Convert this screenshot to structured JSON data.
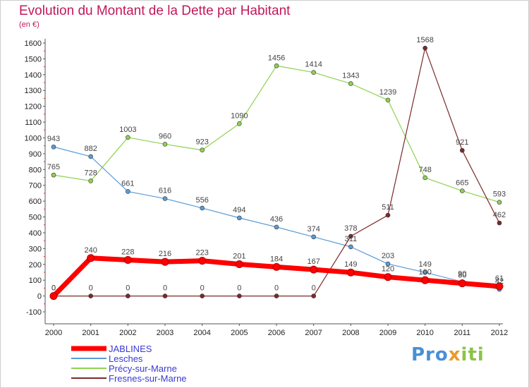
{
  "header": {
    "title": "Evolution du Montant de la Dette par Habitant",
    "subtitle": "(en €)"
  },
  "logo": {
    "text": "Proxiti",
    "parts": [
      "Pro",
      "x",
      "iti"
    ]
  },
  "chart_data": {
    "type": "line",
    "title": "Evolution du Montant de la Dette par Habitant",
    "subtitle": "(en €)",
    "xlabel": "",
    "ylabel": "",
    "x": [
      "2000",
      "2001",
      "2002",
      "2003",
      "2004",
      "2005",
      "2006",
      "2007",
      "2008",
      "2009",
      "2010",
      "2011",
      "2012"
    ],
    "ylim": [
      -100,
      1600
    ],
    "yticks": [
      -100,
      0,
      100,
      200,
      300,
      400,
      500,
      600,
      700,
      800,
      900,
      1000,
      1100,
      1200,
      1300,
      1400,
      1500,
      1600
    ],
    "grid": false,
    "legend_position": "bottom-left",
    "series": [
      {
        "name": "JABLINES",
        "color": "#ff0000",
        "values": [
          0,
          240,
          228,
          216,
          223,
          201,
          184,
          167,
          149,
          120,
          100,
          80,
          61
        ],
        "labels": [
          "0",
          "240",
          "228",
          "216",
          "223",
          "201",
          "184",
          "167",
          "149",
          "120",
          "100",
          "80",
          "61"
        ]
      },
      {
        "name": "Lesches",
        "color": "#5b9bd5",
        "values": [
          943,
          882,
          661,
          616,
          556,
          494,
          436,
          374,
          311,
          203,
          149,
          90,
          42
        ],
        "labels": [
          "943",
          "882",
          "661",
          "616",
          "556",
          "494",
          "436",
          "374",
          "311",
          "203",
          "149",
          "90",
          "42"
        ]
      },
      {
        "name": "Précy-sur-Marne",
        "color": "#8fd14f",
        "values": [
          765,
          728,
          1003,
          960,
          923,
          1090,
          1456,
          1414,
          1343,
          1239,
          748,
          665,
          593
        ],
        "labels": [
          "765",
          "728",
          "1003",
          "960",
          "923",
          "1090",
          "1456",
          "1414",
          "1343",
          "1239",
          "748",
          "665",
          "593"
        ]
      },
      {
        "name": "Fresnes-sur-Marne",
        "color": "#7b2a2a",
        "values": [
          0,
          0,
          0,
          0,
          0,
          0,
          0,
          0,
          378,
          511,
          1568,
          921,
          462
        ],
        "labels": [
          "0",
          "0",
          "0",
          "0",
          "0",
          "0",
          "0",
          "0",
          "378",
          "511",
          "1568",
          "921",
          "462"
        ]
      }
    ]
  }
}
